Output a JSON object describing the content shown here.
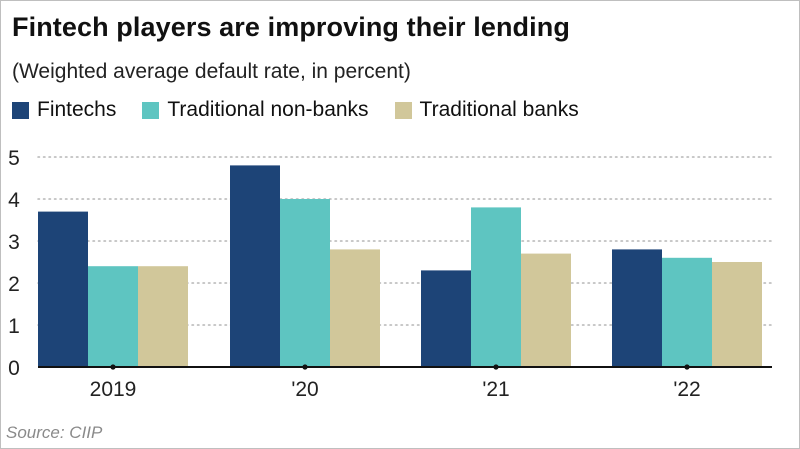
{
  "title": "Fintech players are improving their lending",
  "subtitle": "(Weighted average default rate, in percent)",
  "source": "Source: CIIP",
  "colors": {
    "fintechs": "#1d4477",
    "non_banks": "#5ec5c1",
    "banks": "#d1c79a",
    "grid": "#b5b5b5",
    "axis": "#111111"
  },
  "chart_data": {
    "type": "bar",
    "title": "Fintech players are improving their lending",
    "subtitle": "(Weighted average default rate, in percent)",
    "xlabel": "",
    "ylabel": "",
    "categories": [
      "2019",
      "'20",
      "'21",
      "'22"
    ],
    "series": [
      {
        "name": "Fintechs",
        "values": [
          3.7,
          4.8,
          2.3,
          2.8
        ]
      },
      {
        "name": "Traditional non-banks",
        "values": [
          2.4,
          4.0,
          3.8,
          2.6
        ]
      },
      {
        "name": "Traditional banks",
        "values": [
          2.4,
          2.8,
          2.7,
          2.5
        ]
      }
    ],
    "ylim": [
      0,
      5
    ],
    "yticks": [
      "0",
      "1",
      "2",
      "3",
      "4",
      "5"
    ],
    "grid": true,
    "legend": "top-left",
    "source": "Source: CIIP"
  }
}
